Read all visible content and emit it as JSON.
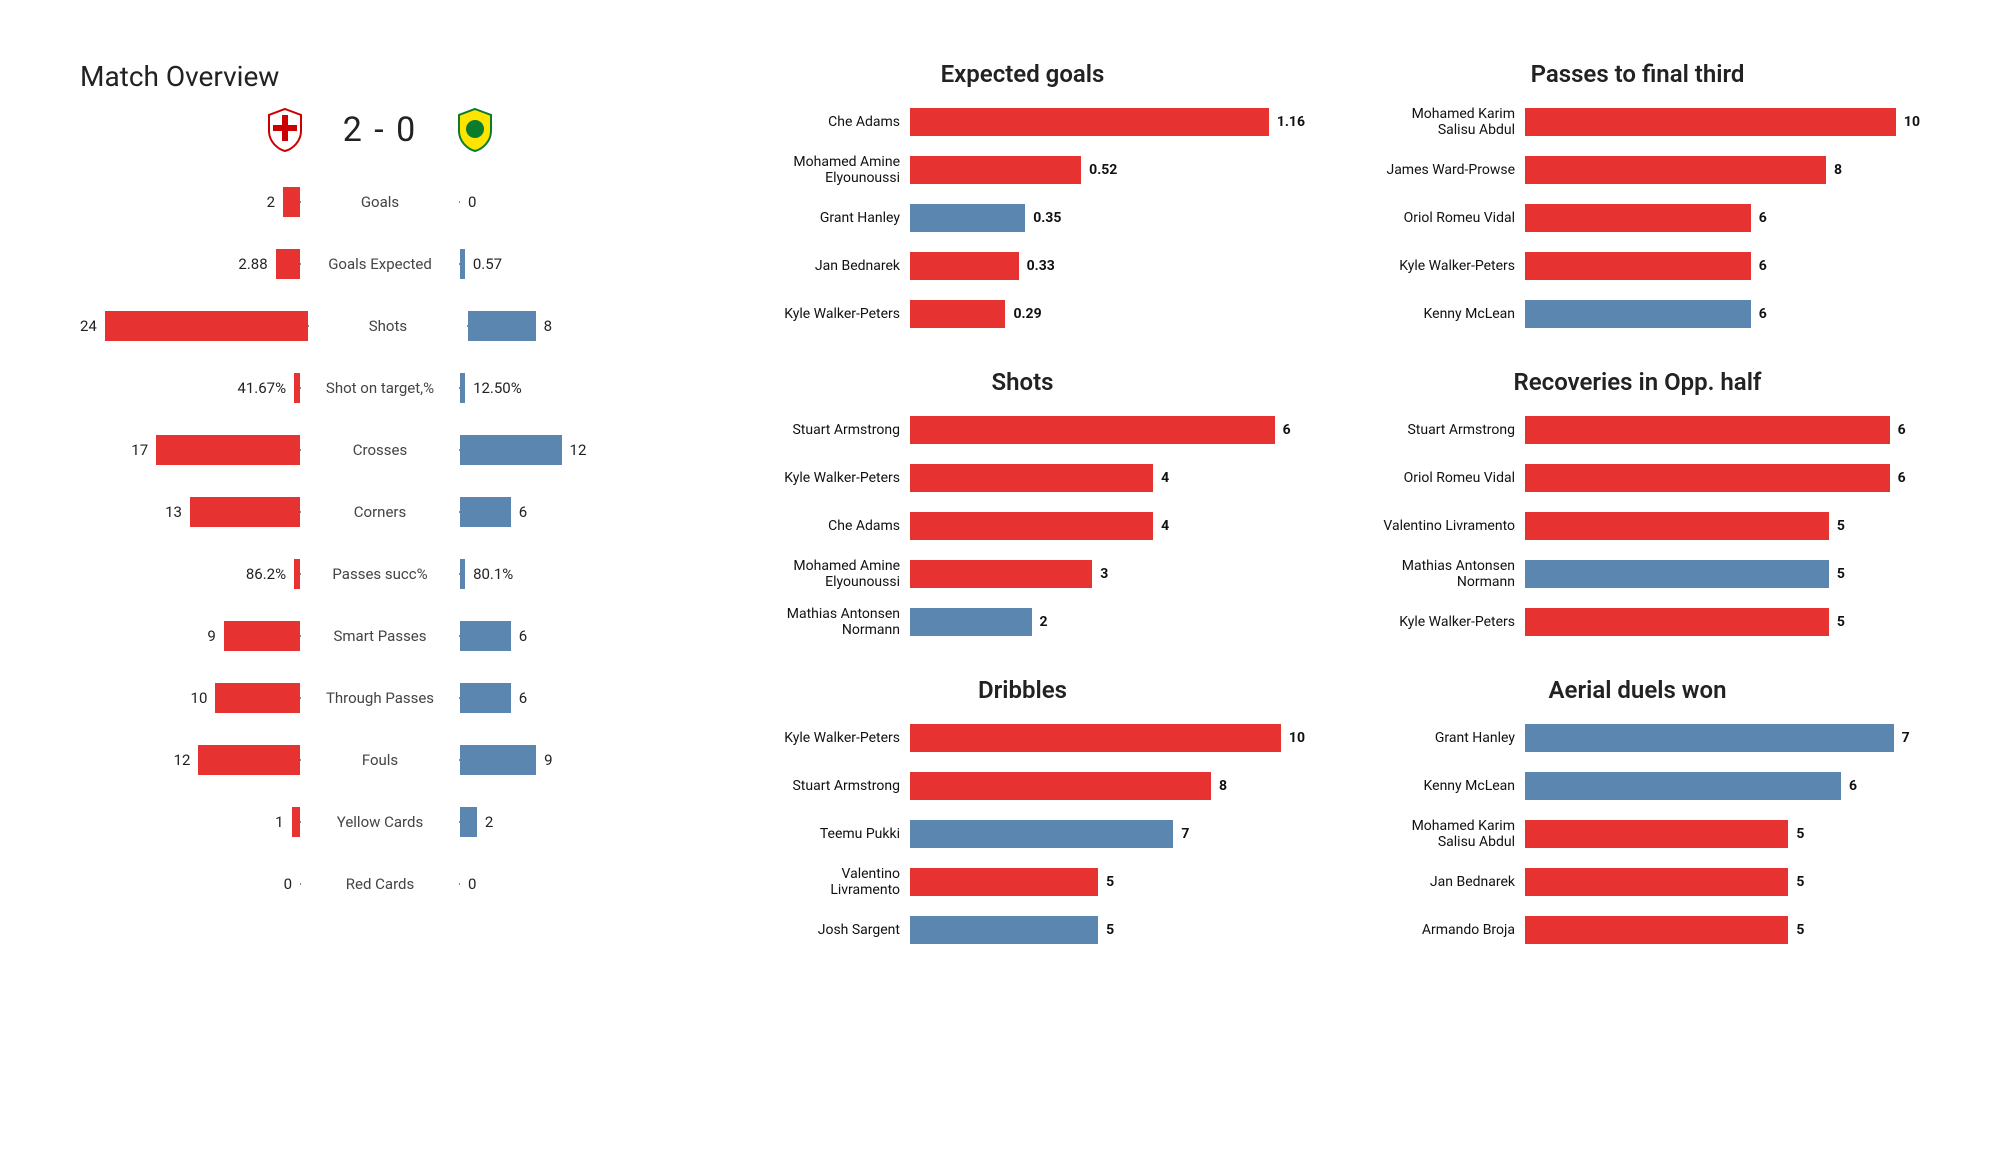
{
  "colors": {
    "home": "#e63332",
    "away": "#5a86af"
  },
  "overview": {
    "title": "Match Overview",
    "score": "2 - 0",
    "max_scale": 26,
    "rows": [
      {
        "label": "Goals",
        "home": "2",
        "away": "0",
        "home_n": 2,
        "away_n": 0
      },
      {
        "label": "Goals Expected",
        "home": "2.88",
        "away": "0.57",
        "home_n": 2.88,
        "away_n": 0.57
      },
      {
        "label": "Shots",
        "home": "24",
        "away": "8",
        "home_n": 24,
        "away_n": 8
      },
      {
        "label": "Shot on target,%",
        "home": "41.67%",
        "away": "12.50%",
        "home_n": 0.7,
        "away_n": 0.6
      },
      {
        "label": "Crosses",
        "home": "17",
        "away": "12",
        "home_n": 17,
        "away_n": 12
      },
      {
        "label": "Corners",
        "home": "13",
        "away": "6",
        "home_n": 13,
        "away_n": 6
      },
      {
        "label": "Passes succ%",
        "home": "86.2%",
        "away": "80.1%",
        "home_n": 0.7,
        "away_n": 0.6
      },
      {
        "label": "Smart Passes",
        "home": "9",
        "away": "6",
        "home_n": 9,
        "away_n": 6
      },
      {
        "label": "Through Passes",
        "home": "10",
        "away": "6",
        "home_n": 10,
        "away_n": 6
      },
      {
        "label": "Fouls",
        "home": "12",
        "away": "9",
        "home_n": 12,
        "away_n": 9
      },
      {
        "label": "Yellow Cards",
        "home": "1",
        "away": "2",
        "home_n": 1,
        "away_n": 2
      },
      {
        "label": "Red Cards",
        "home": "0",
        "away": "0",
        "home_n": 0,
        "away_n": 0
      }
    ]
  },
  "charts": {
    "left": [
      {
        "title": "Expected goals",
        "max": 1.2,
        "rows": [
          {
            "name": "Che Adams",
            "val": "1.16",
            "n": 1.16,
            "team": "home"
          },
          {
            "name": "Mohamed Amine\nElyounoussi",
            "val": "0.52",
            "n": 0.52,
            "team": "home"
          },
          {
            "name": "Grant Hanley",
            "val": "0.35",
            "n": 0.35,
            "team": "away"
          },
          {
            "name": "Jan Bednarek",
            "val": "0.33",
            "n": 0.33,
            "team": "home"
          },
          {
            "name": "Kyle Walker-Peters",
            "val": "0.29",
            "n": 0.29,
            "team": "home"
          }
        ]
      },
      {
        "title": "Shots",
        "max": 6.5,
        "rows": [
          {
            "name": "Stuart Armstrong",
            "val": "6",
            "n": 6,
            "team": "home"
          },
          {
            "name": "Kyle Walker-Peters",
            "val": "4",
            "n": 4,
            "team": "home"
          },
          {
            "name": "Che Adams",
            "val": "4",
            "n": 4,
            "team": "home"
          },
          {
            "name": "Mohamed Amine\nElyounoussi",
            "val": "3",
            "n": 3,
            "team": "home"
          },
          {
            "name": "Mathias  Antonsen\nNormann",
            "val": "2",
            "n": 2,
            "team": "away"
          }
        ]
      },
      {
        "title": "Dribbles",
        "max": 10.5,
        "rows": [
          {
            "name": "Kyle Walker-Peters",
            "val": "10",
            "n": 10,
            "team": "home"
          },
          {
            "name": "Stuart Armstrong",
            "val": "8",
            "n": 8,
            "team": "home"
          },
          {
            "name": "Teemu Pukki",
            "val": "7",
            "n": 7,
            "team": "away"
          },
          {
            "name": "Valentino\nLivramento",
            "val": "5",
            "n": 5,
            "team": "home"
          },
          {
            "name": "Josh Sargent",
            "val": "5",
            "n": 5,
            "team": "away"
          }
        ]
      }
    ],
    "right": [
      {
        "title": "Passes to final third",
        "max": 10.5,
        "rows": [
          {
            "name": "Mohamed Karim\nSalisu Abdul",
            "val": "10",
            "n": 10,
            "team": "home"
          },
          {
            "name": "James  Ward-Prowse",
            "val": "8",
            "n": 8,
            "team": "home"
          },
          {
            "name": "Oriol Romeu Vidal",
            "val": "6",
            "n": 6,
            "team": "home"
          },
          {
            "name": "Kyle Walker-Peters",
            "val": "6",
            "n": 6,
            "team": "home"
          },
          {
            "name": "Kenny McLean",
            "val": "6",
            "n": 6,
            "team": "away"
          }
        ]
      },
      {
        "title": "Recoveries in Opp. half",
        "max": 6.5,
        "rows": [
          {
            "name": "Stuart Armstrong",
            "val": "6",
            "n": 6,
            "team": "home"
          },
          {
            "name": "Oriol Romeu Vidal",
            "val": "6",
            "n": 6,
            "team": "home"
          },
          {
            "name": "Valentino Livramento",
            "val": "5",
            "n": 5,
            "team": "home"
          },
          {
            "name": "Mathias  Antonsen\nNormann",
            "val": "5",
            "n": 5,
            "team": "away"
          },
          {
            "name": "Kyle Walker-Peters",
            "val": "5",
            "n": 5,
            "team": "home"
          }
        ]
      },
      {
        "title": "Aerial duels won",
        "max": 7.5,
        "rows": [
          {
            "name": "Grant Hanley",
            "val": "7",
            "n": 7,
            "team": "away"
          },
          {
            "name": "Kenny McLean",
            "val": "6",
            "n": 6,
            "team": "away"
          },
          {
            "name": "Mohamed Karim\nSalisu Abdul",
            "val": "5",
            "n": 5,
            "team": "home"
          },
          {
            "name": "Jan Bednarek",
            "val": "5",
            "n": 5,
            "team": "home"
          },
          {
            "name": "Armando Broja",
            "val": "5",
            "n": 5,
            "team": "home"
          }
        ]
      }
    ]
  }
}
